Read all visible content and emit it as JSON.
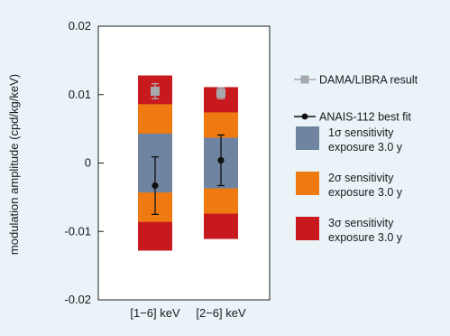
{
  "chart_data": {
    "type": "bar",
    "ylabel": "modulation amplitude (cpd/kg/keV)",
    "ylim": [
      -0.02,
      0.02
    ],
    "yticks": [
      "0.02",
      "0.01",
      "0",
      "-0.01",
      "-0.02"
    ],
    "ytick_values": [
      0.02,
      0.01,
      0,
      -0.01,
      -0.02
    ],
    "categories": [
      "[1−6] keV",
      "[2−6] keV"
    ],
    "bands": [
      {
        "name": "1σ sensitivity",
        "sub": "exposure 3.0 y",
        "color": "#6f84a0",
        "ranges": [
          [
            -0.0043,
            0.0043
          ],
          [
            -0.0037,
            0.0037
          ]
        ]
      },
      {
        "name": "2σ sensitivity",
        "sub": "exposure 3.0 y",
        "color": "#ef7a12",
        "ranges": [
          [
            -0.0086,
            0.0086
          ],
          [
            -0.0074,
            0.0074
          ]
        ]
      },
      {
        "name": "3σ sensitivity",
        "sub": "exposure 3.0 y",
        "color": "#c81a1e",
        "ranges": [
          [
            -0.0128,
            0.0128
          ],
          [
            -0.0111,
            0.0111
          ]
        ]
      }
    ],
    "series": [
      {
        "name": "DAMA/LIBRA result",
        "marker": "square",
        "color": "#a7a9ac",
        "values": [
          0.0105,
          0.0102
        ],
        "err": [
          0.0011,
          0.0008
        ]
      },
      {
        "name": "ANAIS-112 best fit",
        "marker": "circle",
        "color": "#111111",
        "values": [
          -0.0033,
          0.0004
        ],
        "err": [
          0.0042,
          0.0037
        ]
      }
    ]
  }
}
